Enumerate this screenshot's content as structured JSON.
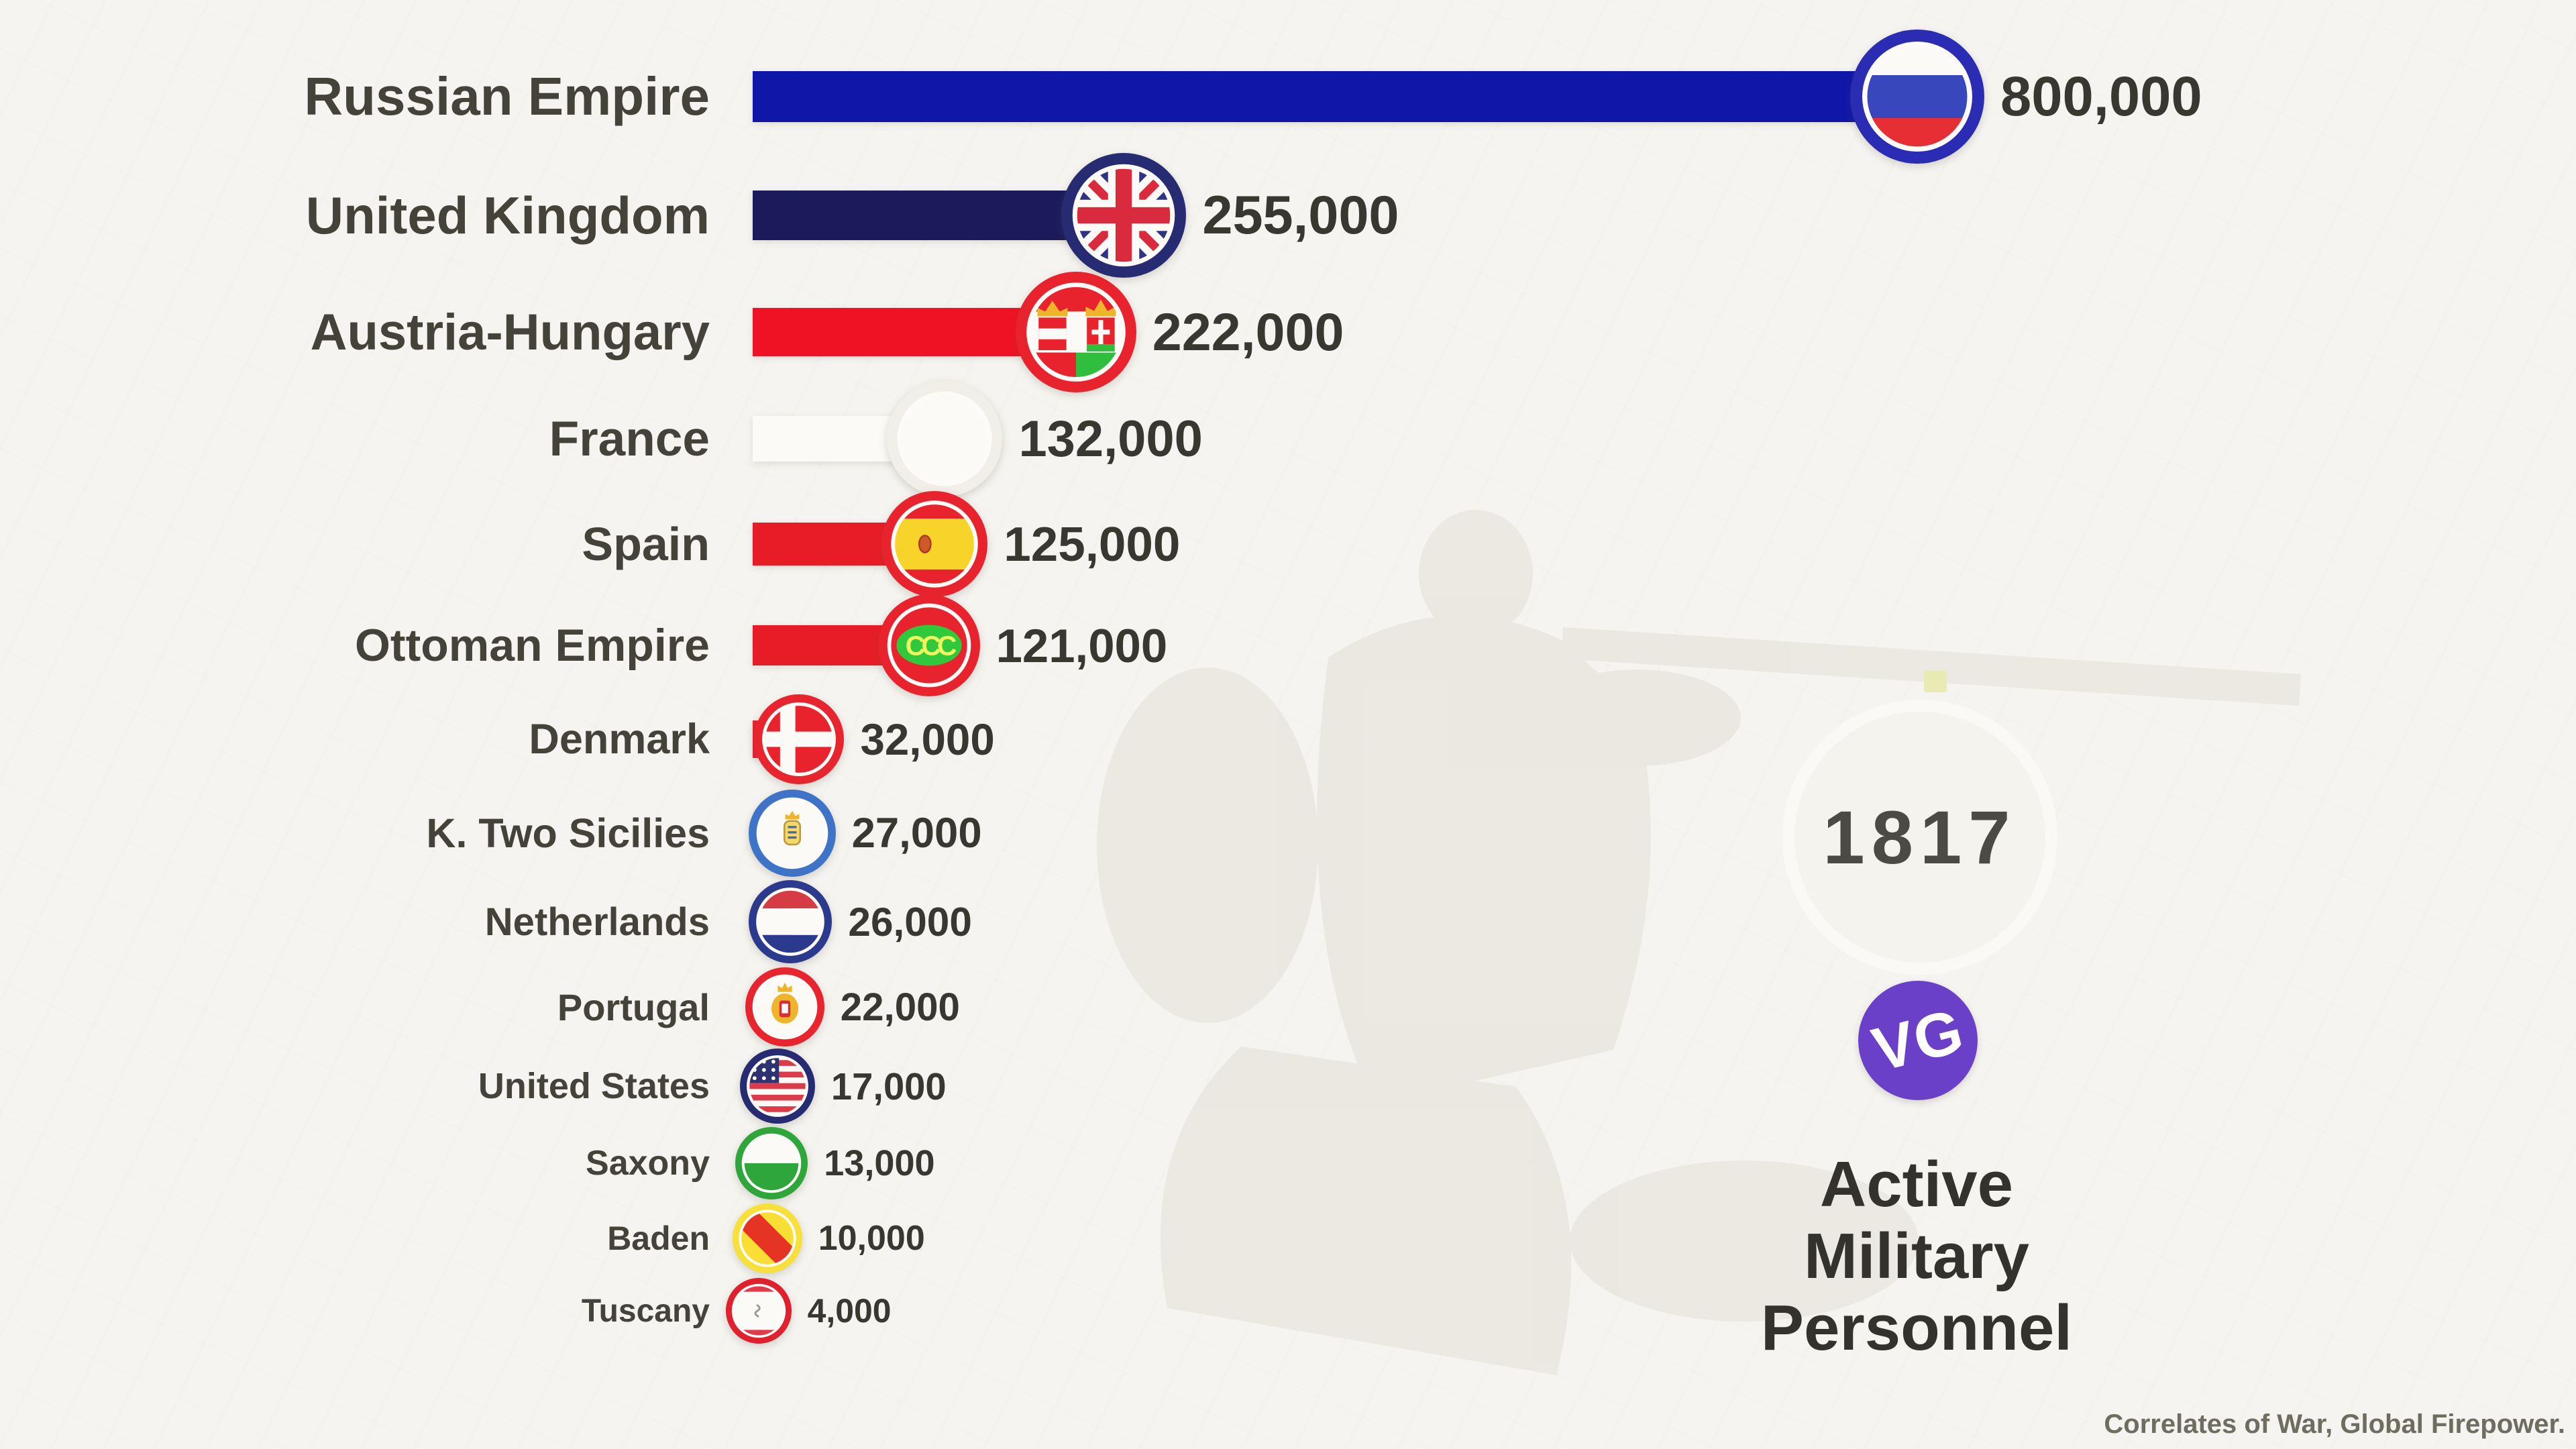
{
  "page": {
    "background_color": "#f5f4f0",
    "year": "1817",
    "year_marker_color": "#e9e9b0",
    "logo_text": "VG",
    "logo_color": "#6b40c8",
    "title_lines": [
      "Active",
      "Military",
      "Personnel"
    ],
    "source_text": "Correlates of War, Global Firepower."
  },
  "chart_data": {
    "type": "bar",
    "orientation": "horizontal",
    "title": "Active Military Personnel",
    "year": 1817,
    "source": "Correlates of War, Global Firepower.",
    "max_value": 800000,
    "legend": "none",
    "grid": false,
    "categories": [
      "Russian Empire",
      "United Kingdom",
      "Austria-Hungary",
      "France",
      "Spain",
      "Ottoman Empire",
      "Denmark",
      "K. Two Sicilies",
      "Netherlands",
      "Portugal",
      "United States",
      "Saxony",
      "Baden",
      "Tuscany"
    ],
    "values": [
      800000,
      255000,
      222000,
      132000,
      125000,
      121000,
      32000,
      27000,
      26000,
      22000,
      17000,
      13000,
      10000,
      4000
    ],
    "rows": [
      {
        "country": "Russian Empire",
        "value": 800000,
        "value_label": "800,000",
        "bar_color": "#0f16a8",
        "ring_color": "#2a2db4",
        "flag": "russian-empire"
      },
      {
        "country": "United Kingdom",
        "value": 255000,
        "value_label": "255,000",
        "bar_color": "#1b1b5c",
        "ring_color": "#272c72",
        "flag": "united-kingdom"
      },
      {
        "country": "Austria-Hungary",
        "value": 222000,
        "value_label": "222,000",
        "bar_color": "#ef1224",
        "ring_color": "#e8232e",
        "flag": "austria-hungary"
      },
      {
        "country": "France",
        "value": 132000,
        "value_label": "132,000",
        "bar_color": "#fbfaf6",
        "ring_color": "#f1efe8",
        "flag": "france"
      },
      {
        "country": "Spain",
        "value": 125000,
        "value_label": "125,000",
        "bar_color": "#e81c26",
        "ring_color": "#e8232e",
        "flag": "spain"
      },
      {
        "country": "Ottoman Empire",
        "value": 121000,
        "value_label": "121,000",
        "bar_color": "#e81c26",
        "ring_color": "#e8232e",
        "flag": "ottoman-empire"
      },
      {
        "country": "Denmark",
        "value": 32000,
        "value_label": "32,000",
        "bar_color": "#e8232e",
        "ring_color": "#e8252f",
        "flag": "denmark"
      },
      {
        "country": "K. Two Sicilies",
        "value": 27000,
        "value_label": "27,000",
        "bar_color": "#3f73c8",
        "ring_color": "#3f73c8",
        "flag": "two-sicilies"
      },
      {
        "country": "Netherlands",
        "value": 26000,
        "value_label": "26,000",
        "bar_color": "#2c3a8e",
        "ring_color": "#2c3a8e",
        "flag": "netherlands"
      },
      {
        "country": "Portugal",
        "value": 22000,
        "value_label": "22,000",
        "bar_color": "#e8252f",
        "ring_color": "#e8252f",
        "flag": "portugal"
      },
      {
        "country": "United States",
        "value": 17000,
        "value_label": "17,000",
        "bar_color": "#272c72",
        "ring_color": "#272c72",
        "flag": "united-states"
      },
      {
        "country": "Saxony",
        "value": 13000,
        "value_label": "13,000",
        "bar_color": "#2fa63c",
        "ring_color": "#2fa63c",
        "flag": "saxony"
      },
      {
        "country": "Baden",
        "value": 10000,
        "value_label": "10,000",
        "bar_color": "#f8e03a",
        "ring_color": "#f8e03a",
        "flag": "baden"
      },
      {
        "country": "Tuscany",
        "value": 4000,
        "value_label": "4,000",
        "bar_color": "#e0202c",
        "ring_color": "#e0202c",
        "flag": "tuscany"
      }
    ]
  }
}
